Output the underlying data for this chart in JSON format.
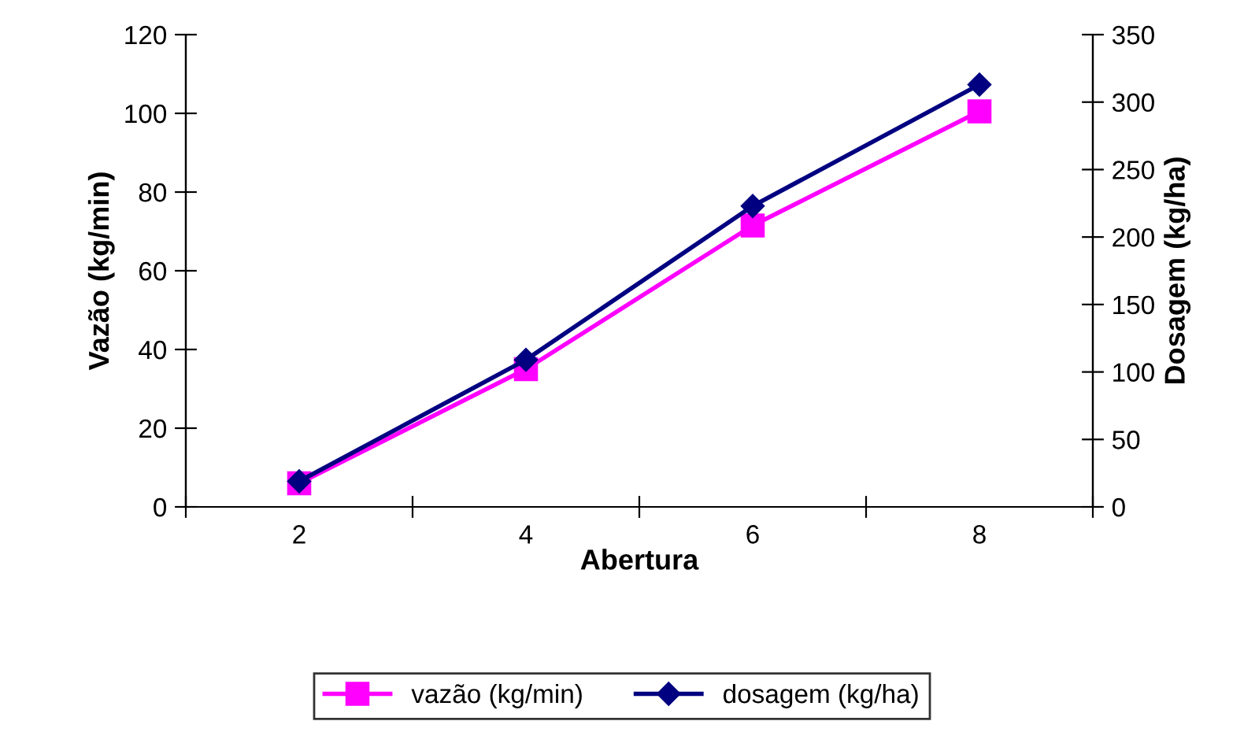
{
  "chart_data": {
    "type": "line",
    "xlabel": "Abertura",
    "ylabel": "Vazão (kg/min)",
    "y2label": "Dosagem (kg/ha)",
    "categories": [
      "2",
      "4",
      "6",
      "8"
    ],
    "series": [
      {
        "name": "vazão (kg/min)",
        "color": "#ff00ff",
        "marker": "square",
        "values": [
          6,
          35,
          71.5,
          100.5
        ]
      },
      {
        "name": "dosagem (kg/ha)",
        "color": "#000080",
        "marker": "diamond",
        "axis": "y2",
        "values": [
          19,
          109,
          223,
          313
        ]
      }
    ],
    "ylim": [
      0,
      120
    ],
    "yticks": [
      0,
      20,
      40,
      60,
      80,
      100,
      120
    ],
    "y2lim": [
      0,
      350
    ],
    "y2ticks": [
      0,
      50,
      100,
      150,
      200,
      250,
      300,
      350
    ],
    "legend": "bottom",
    "grid": false
  }
}
